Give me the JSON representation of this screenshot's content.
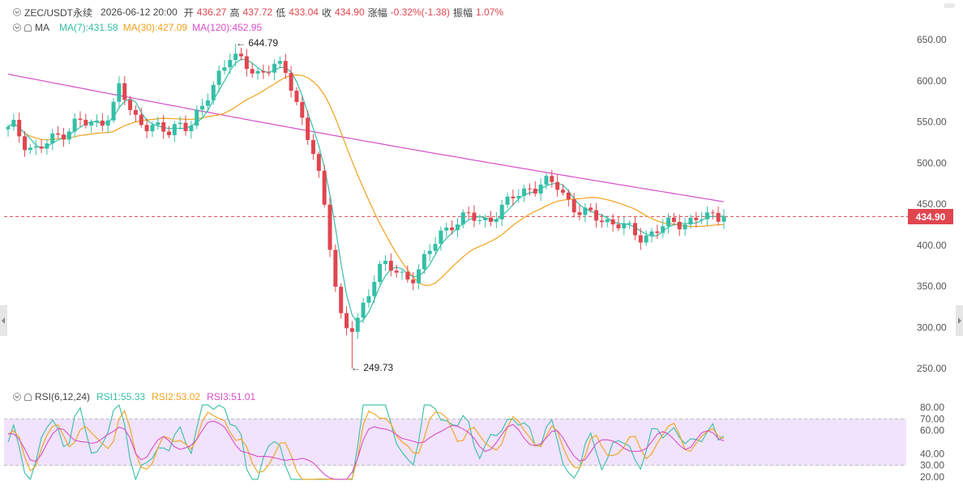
{
  "header": {
    "symbol": "ZEC/USDT永续",
    "datetime": "2026-06-12 20:00",
    "open_label": "开",
    "open": "436.27",
    "high_label": "高",
    "high": "437.72",
    "low_label": "低",
    "low": "433.04",
    "close_label": "收",
    "close": "434.90",
    "change_label": "涨幅",
    "change": "-0.32%(-1.38)",
    "amp_label": "振幅",
    "amp": "1.07%"
  },
  "ma_legend": {
    "name": "MA",
    "ma7": "MA(7):431.58",
    "ma30": "MA(30):427.09",
    "ma120": "MA(120):452.95"
  },
  "rsi_legend": {
    "name": "RSI(6,12,24)",
    "rsi1": "RSI1:55.33",
    "rsi2": "RSI2:53.02",
    "rsi3": "RSI3:51.01"
  },
  "annotations": {
    "high_marker": "← 644.79",
    "low_marker": "← 249.73"
  },
  "current_price": "434.90",
  "price_axis_labels": [
    "650.00",
    "600.00",
    "550.00",
    "500.00",
    "450.00",
    "400.00",
    "350.00",
    "300.00",
    "250.00"
  ],
  "rsi_axis_labels": [
    "80.00",
    "70.00",
    "60.00",
    "40.00",
    "30.00",
    "20.00"
  ],
  "colors": {
    "up": "#34bfa6",
    "down": "#e0464f",
    "ma7": "#34bfa6",
    "ma30": "#f0a21c",
    "ma120": "#d64fc8",
    "rsi_band": "#f1e3fb"
  },
  "chart_data": {
    "type": "candlestick",
    "ylim": [
      235,
      665
    ],
    "key_values": {
      "high": 644.79,
      "low": 249.73,
      "last_close": 434.9
    },
    "close_path": [
      540,
      545,
      528,
      520,
      516,
      520,
      526,
      532,
      538,
      544,
      552,
      548,
      545,
      548,
      556,
      566,
      592,
      574,
      556,
      550,
      548,
      545,
      538,
      535,
      545,
      550,
      545,
      555,
      565,
      585,
      605,
      620,
      632,
      625,
      618,
      614,
      610,
      612,
      620,
      615,
      608,
      590,
      562,
      535,
      510,
      470,
      420,
      360,
      310,
      295,
      300,
      320,
      345,
      372,
      380,
      372,
      364,
      358,
      360,
      372,
      385,
      396,
      410,
      418,
      428,
      433,
      436,
      432,
      428,
      430,
      438,
      446,
      452,
      460,
      464,
      470,
      472,
      476,
      474,
      472,
      462,
      450,
      442,
      438,
      435,
      433,
      430,
      428,
      426,
      420,
      414,
      410,
      412,
      418,
      422,
      424,
      426,
      428,
      430,
      432,
      434,
      432,
      435,
      434.9
    ],
    "ma7_end": 431.58,
    "ma30_end": 427.09,
    "ma120_end": 452.95,
    "rsi": {
      "rsi1_end": 55.33,
      "rsi2_end": 53.02,
      "rsi3_end": 51.01,
      "ylim": [
        20,
        80
      ],
      "band": [
        30,
        70
      ]
    }
  }
}
